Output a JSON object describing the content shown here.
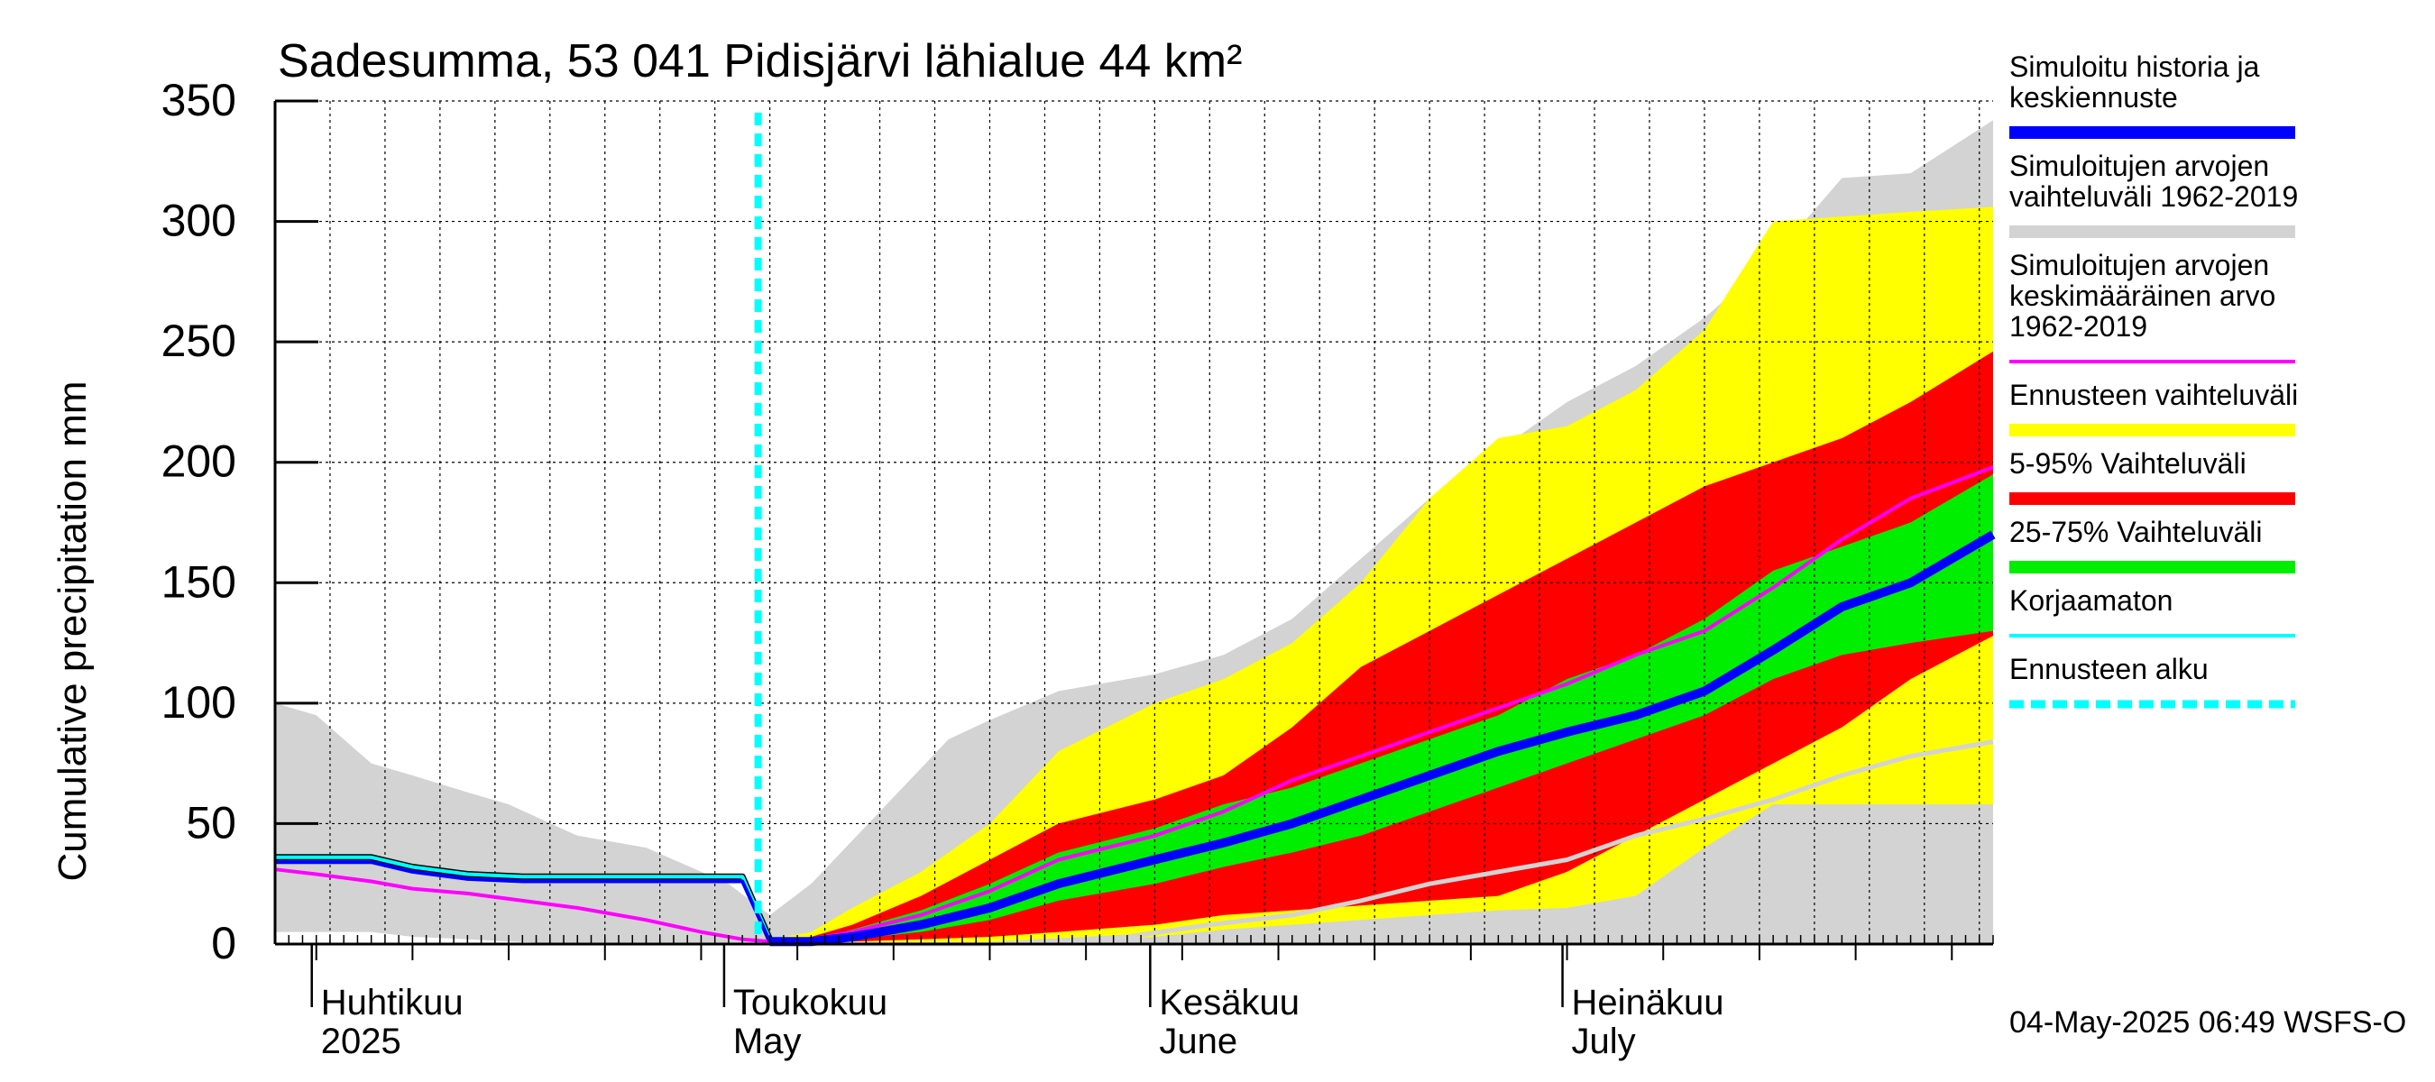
{
  "chart_data": {
    "type": "area",
    "title": "Sadesumma, 53 041 Pidisjärvi lähialue 44 km²",
    "ylabel": "Cumulative precipitation   mm",
    "xlabel": "",
    "ylim": [
      0,
      350
    ],
    "xlim": [
      "2025-03-29",
      "2025-08-01"
    ],
    "grid": true,
    "legend_position": "right",
    "yticks": [
      0,
      50,
      100,
      150,
      200,
      250,
      300,
      350
    ],
    "month_labels": [
      {
        "fi": "Huhtikuu",
        "en": "2025",
        "date": "2025-04-01"
      },
      {
        "fi": "Toukokuu",
        "en": "May",
        "date": "2025-05-01"
      },
      {
        "fi": "Kesäkuu",
        "en": "June",
        "date": "2025-06-01"
      },
      {
        "fi": "Heinäkuu",
        "en": "July",
        "date": "2025-07-01"
      }
    ],
    "forecast_start": "2025-05-04",
    "footer": "04-May-2025 06:49 WSFS-O",
    "colors": {
      "history": "#0000ff",
      "range_sim": "#d3d3d3",
      "mean_sim": "#ff00ff",
      "range_forecast": "#ffff00",
      "p5_95": "#ff0000",
      "p25_75": "#00ee00",
      "uncorrected": "#00ffff",
      "forecast_start": "#00ffff",
      "low_line": "#d3d3d3"
    },
    "legend": [
      {
        "label": "Simuloitu historia ja keskiennuste",
        "lines": [
          "Simuloitu historia ja",
          "keskiennuste"
        ],
        "color": "#0000ff",
        "style": "thick"
      },
      {
        "label": "Simuloitujen arvojen vaihteluväli 1962-2019",
        "lines": [
          "Simuloitujen arvojen",
          "vaihteluväli 1962-2019"
        ],
        "color": "#d3d3d3",
        "style": "thick"
      },
      {
        "label": "Simuloitujen arvojen keskimääräinen arvo 1962-2019",
        "lines": [
          "Simuloitujen arvojen",
          "keskimääräinen arvo",
          "   1962-2019"
        ],
        "color": "#ff00ff",
        "style": "thin"
      },
      {
        "label": "Ennusteen vaihteluväli",
        "lines": [
          "Ennusteen vaihteluväli"
        ],
        "color": "#ffff00",
        "style": "thick"
      },
      {
        "label": "5-95% Vaihteluväli",
        "lines": [
          "5-95% Vaihteluväli"
        ],
        "color": "#ff0000",
        "style": "thick"
      },
      {
        "label": "25-75% Vaihteluväli",
        "lines": [
          "25-75% Vaihteluväli"
        ],
        "color": "#00ee00",
        "style": "thick"
      },
      {
        "label": "Korjaamaton",
        "lines": [
          "Korjaamaton"
        ],
        "color": "#00ffff",
        "style": "thin"
      },
      {
        "label": "Ennusteen alku",
        "lines": [
          "Ennusteen alku"
        ],
        "color": "#00ffff",
        "style": "dashed"
      }
    ],
    "series": [
      {
        "name": "Simuloitujen arvojen vaihteluväli 1962-2019",
        "kind": "band",
        "x": [
          "2025-03-29",
          "2025-04-01",
          "2025-04-05",
          "2025-04-08",
          "2025-04-12",
          "2025-04-15",
          "2025-04-20",
          "2025-04-25",
          "2025-05-01",
          "2025-05-04",
          "2025-05-07",
          "2025-05-12",
          "2025-05-17",
          "2025-05-20",
          "2025-05-25",
          "2025-06-01",
          "2025-06-06",
          "2025-06-11",
          "2025-06-16",
          "2025-06-21",
          "2025-06-26",
          "2025-07-01",
          "2025-07-06",
          "2025-07-11",
          "2025-07-16",
          "2025-07-21",
          "2025-07-26",
          "2025-08-01"
        ],
        "low": [
          5,
          5,
          5,
          3,
          2,
          1,
          0,
          0,
          0,
          0,
          0,
          0,
          0,
          0,
          0,
          0,
          0,
          0,
          0,
          0,
          0,
          0,
          0,
          0,
          0,
          0,
          0,
          0
        ],
        "high": [
          100,
          95,
          75,
          70,
          63,
          58,
          45,
          40,
          25,
          12,
          25,
          55,
          85,
          93,
          105,
          112,
          120,
          135,
          160,
          185,
          205,
          225,
          240,
          260,
          285,
          318,
          320,
          342
        ]
      },
      {
        "name": "Ennusteen vaihteluväli",
        "kind": "band",
        "x": [
          "2025-05-04",
          "2025-05-07",
          "2025-05-10",
          "2025-05-15",
          "2025-05-20",
          "2025-05-25",
          "2025-06-01",
          "2025-06-06",
          "2025-06-11",
          "2025-06-16",
          "2025-06-21",
          "2025-06-26",
          "2025-07-01",
          "2025-07-06",
          "2025-07-11",
          "2025-07-16",
          "2025-07-21",
          "2025-07-26",
          "2025-08-01"
        ],
        "low": [
          0,
          0,
          0,
          0,
          0,
          1,
          3,
          6,
          8,
          10,
          12,
          14,
          15,
          20,
          40,
          58,
          58,
          58,
          58
        ],
        "high": [
          2,
          5,
          15,
          30,
          50,
          80,
          100,
          110,
          125,
          150,
          185,
          210,
          215,
          230,
          255,
          300,
          302,
          304,
          306
        ]
      },
      {
        "name": "5-95% Vaihteluväli",
        "kind": "band",
        "x": [
          "2025-05-04",
          "2025-05-07",
          "2025-05-10",
          "2025-05-15",
          "2025-05-20",
          "2025-05-25",
          "2025-06-01",
          "2025-06-06",
          "2025-06-11",
          "2025-06-16",
          "2025-06-21",
          "2025-06-26",
          "2025-07-01",
          "2025-07-06",
          "2025-07-11",
          "2025-07-16",
          "2025-07-21",
          "2025-07-26",
          "2025-08-01"
        ],
        "low": [
          0,
          0,
          1,
          2,
          3,
          5,
          8,
          12,
          14,
          16,
          18,
          20,
          30,
          45,
          60,
          75,
          90,
          110,
          128
        ],
        "high": [
          1,
          3,
          8,
          20,
          35,
          50,
          60,
          70,
          90,
          115,
          130,
          145,
          160,
          175,
          190,
          200,
          210,
          225,
          246
        ]
      },
      {
        "name": "25-75% Vaihteluväli",
        "kind": "band",
        "x": [
          "2025-05-04",
          "2025-05-07",
          "2025-05-10",
          "2025-05-15",
          "2025-05-20",
          "2025-05-25",
          "2025-06-01",
          "2025-06-06",
          "2025-06-11",
          "2025-06-16",
          "2025-06-21",
          "2025-06-26",
          "2025-07-01",
          "2025-07-06",
          "2025-07-11",
          "2025-07-16",
          "2025-07-21",
          "2025-07-26",
          "2025-08-01"
        ],
        "low": [
          0,
          0,
          2,
          5,
          10,
          18,
          25,
          32,
          38,
          45,
          55,
          65,
          75,
          85,
          95,
          110,
          120,
          125,
          130
        ],
        "high": [
          1,
          2,
          6,
          14,
          25,
          38,
          48,
          58,
          65,
          75,
          85,
          95,
          110,
          120,
          135,
          155,
          165,
          175,
          195
        ]
      },
      {
        "name": "Simuloitujen arvojen keskimääräinen arvo 1962-2019",
        "kind": "line",
        "x": [
          "2025-03-29",
          "2025-04-01",
          "2025-04-05",
          "2025-04-08",
          "2025-04-12",
          "2025-04-16",
          "2025-04-20",
          "2025-04-25",
          "2025-04-29",
          "2025-05-02",
          "2025-05-04",
          "2025-05-07",
          "2025-05-10",
          "2025-05-15",
          "2025-05-20",
          "2025-05-25",
          "2025-06-01",
          "2025-06-06",
          "2025-06-11",
          "2025-06-16",
          "2025-06-21",
          "2025-06-26",
          "2025-07-01",
          "2025-07-06",
          "2025-07-11",
          "2025-07-16",
          "2025-07-21",
          "2025-07-26",
          "2025-08-01"
        ],
        "y": [
          31,
          29,
          26,
          23,
          21,
          18,
          15,
          10,
          5,
          2,
          1,
          2,
          5,
          12,
          22,
          35,
          45,
          55,
          68,
          78,
          88,
          98,
          108,
          120,
          130,
          148,
          168,
          185,
          198
        ]
      },
      {
        "name": "Simuloitu historia ja keskiennuste",
        "kind": "line",
        "x": [
          "2025-03-29",
          "2025-04-01",
          "2025-04-05",
          "2025-04-08",
          "2025-04-12",
          "2025-04-16",
          "2025-04-20",
          "2025-04-25",
          "2025-04-29",
          "2025-05-02",
          "2025-05-04",
          "2025-05-07",
          "2025-05-10",
          "2025-05-15",
          "2025-05-20",
          "2025-05-25",
          "2025-06-01",
          "2025-06-06",
          "2025-06-11",
          "2025-06-16",
          "2025-06-21",
          "2025-06-26",
          "2025-07-01",
          "2025-07-06",
          "2025-07-11",
          "2025-07-16",
          "2025-07-21",
          "2025-07-26",
          "2025-08-01"
        ],
        "y": [
          34,
          34,
          34,
          30,
          27,
          26,
          26,
          26,
          26,
          26,
          1,
          1,
          3,
          8,
          15,
          25,
          35,
          42,
          50,
          60,
          70,
          80,
          88,
          95,
          105,
          122,
          140,
          150,
          170
        ]
      },
      {
        "name": "Korjaamaton",
        "kind": "line",
        "x": [
          "2025-03-29",
          "2025-04-01",
          "2025-04-05",
          "2025-04-08",
          "2025-04-12",
          "2025-04-16",
          "2025-04-20",
          "2025-04-25",
          "2025-04-29",
          "2025-05-02",
          "2025-05-04"
        ],
        "y": [
          36,
          36,
          36,
          32,
          29,
          28,
          28,
          28,
          28,
          28,
          2
        ]
      },
      {
        "name": "",
        "kind": "line",
        "x": [
          "2025-05-04",
          "2025-05-10",
          "2025-05-20",
          "2025-05-30",
          "2025-06-05",
          "2025-06-11",
          "2025-06-16",
          "2025-06-21",
          "2025-06-26",
          "2025-07-01",
          "2025-07-06",
          "2025-07-11",
          "2025-07-16",
          "2025-07-21",
          "2025-07-26",
          "2025-08-01"
        ],
        "y": [
          0,
          0,
          0,
          3,
          8,
          12,
          18,
          25,
          30,
          35,
          45,
          52,
          60,
          70,
          78,
          84
        ]
      }
    ]
  }
}
